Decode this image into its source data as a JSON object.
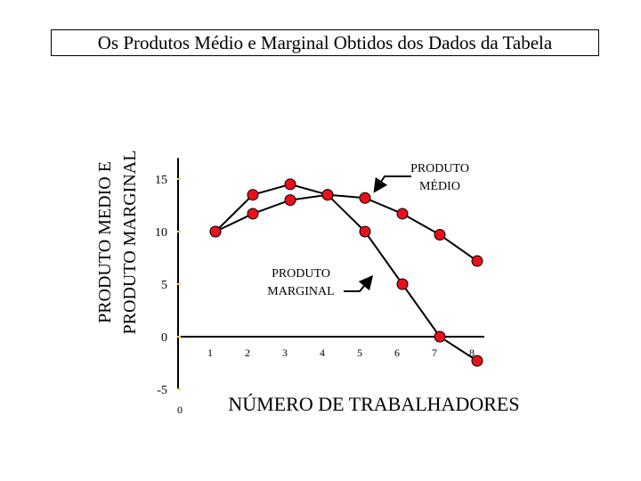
{
  "chart_data": {
    "type": "line",
    "title": "Os Produtos Médio e Marginal Obtidos dos Dados da Tabela",
    "ylabel_lines": [
      "PRODUTO MEDIO E",
      "PRODUTO MARGINAL"
    ],
    "xlabel": "NÚMERO DE TRABALHADORES",
    "x_ticks": [
      1,
      2,
      3,
      4,
      5,
      6,
      7,
      8
    ],
    "x_origin_label": "0",
    "y_ticks": [
      15,
      10,
      5,
      0,
      -5
    ],
    "ylim": [
      -5,
      17
    ],
    "xlim": [
      0,
      8
    ],
    "series": [
      {
        "name_lines": [
          "PRODUTO",
          "MÉDIO"
        ],
        "color": "#e8111b",
        "x": [
          1,
          2,
          3,
          4,
          5,
          6,
          7,
          8
        ],
        "y": [
          10,
          11.7,
          13,
          13.5,
          13.2,
          11.7,
          9.7,
          7.2
        ]
      },
      {
        "name_lines": [
          "PRODUTO",
          "MARGINAL"
        ],
        "color": "#e8111b",
        "x": [
          1,
          2,
          3,
          4,
          5,
          6,
          7,
          8
        ],
        "y": [
          10,
          13.5,
          14.5,
          13.5,
          10,
          5,
          0,
          -2.3
        ]
      }
    ]
  }
}
